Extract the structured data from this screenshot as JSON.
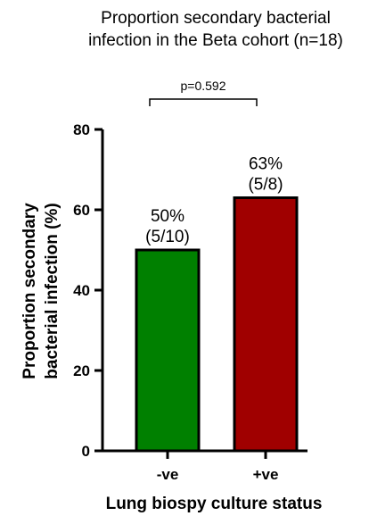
{
  "chart_data": {
    "type": "bar",
    "title": [
      "Proportion secondary bacterial",
      "infection in the Beta cohort (n=18)"
    ],
    "ylabel": [
      "Proportion secondary",
      "bacterial infection (%)"
    ],
    "xlabel": "Lung biospy culture status",
    "categories": [
      "-ve",
      "+ve"
    ],
    "values": [
      50,
      63
    ],
    "data_labels": [
      [
        "50%",
        "(5/10)"
      ],
      [
        "63%",
        "(5/8)"
      ]
    ],
    "colors": [
      "#008000",
      "#a00000"
    ],
    "ylim": [
      0,
      80
    ],
    "yticks": [
      0,
      20,
      40,
      60,
      80
    ],
    "annotation": "p=0.592",
    "grid": false
  }
}
